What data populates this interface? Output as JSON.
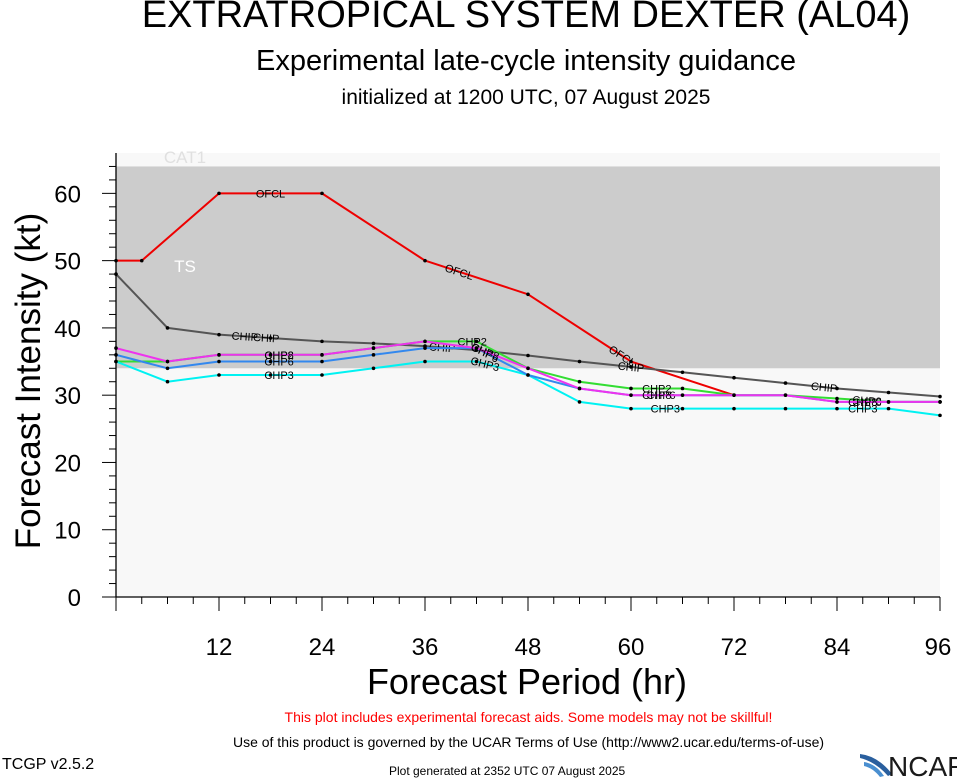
{
  "header": {
    "title": "EXTRATROPICAL SYSTEM DEXTER (AL04)",
    "subtitle": "Experimental late-cycle intensity guidance",
    "initialized": "initialized at 1200 UTC, 07 August 2025"
  },
  "footer": {
    "warning": "This plot includes experimental forecast aids. Some models may not be skillful!",
    "terms": "Use of this product is governed by the UCAR Terms of Use (http://www2.ucar.edu/terms-of-use)",
    "version": "TCGP v2.5.2",
    "generated": "Plot generated at 2352 UTC   07 August 2025",
    "logo_text": "NCAR"
  },
  "colors": {
    "OFCL": "#ee0000",
    "CHIP": "#555555",
    "CHP2": "#33dd33",
    "CHP3": "#00f2f2",
    "CHP6": "#3388ee",
    "CHP8": "#ee33ee",
    "ts_band": "#cccccc",
    "below_band": "#f8f8f8",
    "cat1_label": "#e0e0e0"
  },
  "chart_data": {
    "type": "line",
    "xlabel": "Forecast Period (hr)",
    "ylabel": "Forecast Intensity (kt)",
    "xlim": [
      0,
      96
    ],
    "ylim": [
      0,
      66
    ],
    "xticks": [
      12,
      24,
      36,
      48,
      60,
      72,
      84,
      96
    ],
    "yticks": [
      0,
      10,
      20,
      30,
      40,
      50,
      60
    ],
    "bands": [
      {
        "label": "TS",
        "from": 34,
        "to": 64
      },
      {
        "label": "CAT1",
        "from": 64,
        "to": 83
      }
    ],
    "series": [
      {
        "name": "OFCL",
        "x": [
          0,
          3,
          12,
          24,
          36,
          48,
          60,
          72
        ],
        "y": [
          50,
          50,
          60,
          60,
          50,
          45,
          35,
          30
        ],
        "labels_at": [
          18,
          40,
          59
        ]
      },
      {
        "name": "CHIP",
        "x": [
          0,
          6,
          12,
          18,
          24,
          30,
          36,
          42,
          48,
          54,
          60,
          66,
          72,
          78,
          84,
          90,
          96
        ],
        "y": [
          48,
          40,
          39,
          38.5,
          38,
          37.7,
          37.3,
          36.7,
          35.9,
          35,
          34.2,
          33.4,
          32.6,
          31.8,
          31,
          30.4,
          29.8
        ],
        "labels_at": [
          15,
          17.5,
          38,
          60,
          82.5
        ]
      },
      {
        "name": "CHP2",
        "x": [
          0,
          6,
          12,
          18,
          24,
          30,
          36,
          42,
          48,
          54,
          60,
          66,
          72,
          78,
          84,
          90,
          96
        ],
        "y": [
          35,
          35,
          36,
          36,
          36,
          37,
          38,
          38,
          34,
          32,
          31,
          31,
          30,
          30,
          29.5,
          29,
          29
        ],
        "labels_at": [
          19,
          41.5,
          63,
          87.5
        ]
      },
      {
        "name": "CHP3",
        "x": [
          0,
          6,
          12,
          18,
          24,
          30,
          36,
          42,
          48,
          54,
          60,
          66,
          72,
          78,
          84,
          90,
          96
        ],
        "y": [
          35,
          32,
          33,
          33,
          33,
          34,
          35,
          35,
          33,
          29,
          28,
          28,
          28,
          28,
          28,
          28,
          27
        ],
        "labels_at": [
          19,
          43,
          64,
          87
        ]
      },
      {
        "name": "CHP6",
        "x": [
          0,
          6,
          12,
          18,
          24,
          30,
          36,
          42,
          48,
          54,
          60,
          66,
          72,
          78,
          84,
          90,
          96
        ],
        "y": [
          36,
          34,
          35,
          35,
          35,
          36,
          37,
          37,
          33,
          31,
          30,
          30,
          30,
          30,
          29,
          29,
          29
        ],
        "labels_at": [
          19,
          43,
          63.5,
          87.5
        ]
      },
      {
        "name": "CHP8",
        "x": [
          0,
          6,
          12,
          18,
          24,
          30,
          36,
          42,
          48,
          54,
          60,
          66,
          72,
          78,
          84,
          90,
          96
        ],
        "y": [
          37,
          35,
          36,
          36,
          36,
          37,
          38,
          37,
          34,
          31,
          30,
          30,
          30,
          30,
          29,
          29,
          29
        ],
        "labels_at": [
          19,
          43,
          63,
          87
        ]
      }
    ]
  }
}
